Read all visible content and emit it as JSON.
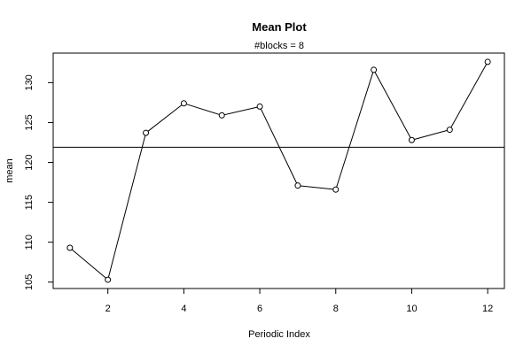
{
  "chart_data": {
    "type": "line",
    "title": "Mean Plot",
    "subtitle": "#blocks =  8",
    "xlabel": "Periodic Index",
    "ylabel": "mean",
    "x": [
      1,
      2,
      3,
      4,
      5,
      6,
      7,
      8,
      9,
      10,
      11,
      12
    ],
    "values": [
      109.3,
      105.3,
      123.7,
      127.4,
      125.9,
      127.0,
      117.1,
      116.6,
      131.6,
      122.8,
      124.1,
      132.6
    ],
    "reference_line": 121.9,
    "xlim": [
      0.56,
      12.44
    ],
    "ylim": [
      104.2,
      133.7
    ],
    "xticks": [
      2,
      4,
      6,
      8,
      10,
      12
    ],
    "yticks": [
      105,
      110,
      115,
      120,
      125,
      130
    ],
    "grid": false,
    "legend": "none"
  }
}
